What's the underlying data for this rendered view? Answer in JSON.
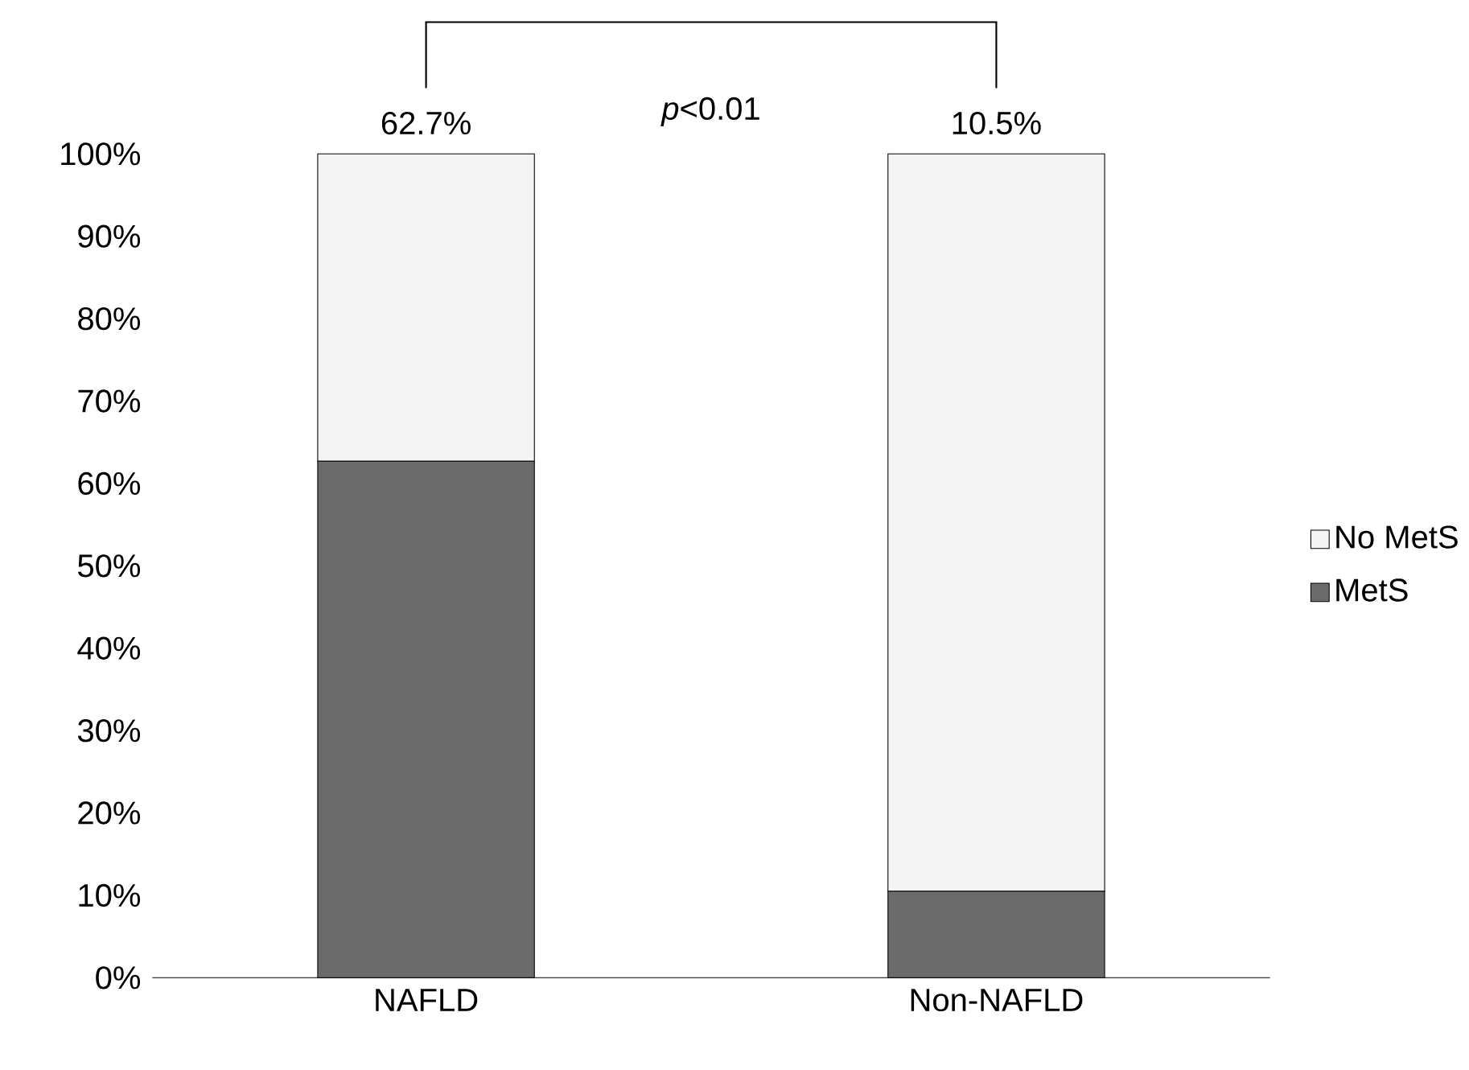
{
  "chart_data": {
    "type": "bar",
    "stacked": true,
    "categories": [
      "NAFLD",
      "Non-NAFLD"
    ],
    "series": [
      {
        "name": "MetS",
        "color": "#6b6b6b",
        "values": [
          62.7,
          10.5
        ]
      },
      {
        "name": "No MetS",
        "color": "#f4f4f4",
        "values": [
          37.3,
          89.5
        ]
      }
    ],
    "ylim": [
      0,
      100
    ],
    "yticks": [
      {
        "value": 0,
        "label": "0%"
      },
      {
        "value": 10,
        "label": "10%"
      },
      {
        "value": 20,
        "label": "20%"
      },
      {
        "value": 30,
        "label": "30%"
      },
      {
        "value": 40,
        "label": "40%"
      },
      {
        "value": 50,
        "label": "50%"
      },
      {
        "value": 60,
        "label": "60%"
      },
      {
        "value": 70,
        "label": "70%"
      },
      {
        "value": 80,
        "label": "80%"
      },
      {
        "value": 90,
        "label": "90%"
      },
      {
        "value": 100,
        "label": "100%"
      }
    ],
    "annotations": [
      "*p*<0.01",
      {
        "text": "62.7%",
        "x": "NAFLD",
        "y": 100
      },
      {
        "text": "10.5%",
        "x": "Non-NAFLD",
        "y": 100
      }
    ],
    "legend": "right"
  }
}
